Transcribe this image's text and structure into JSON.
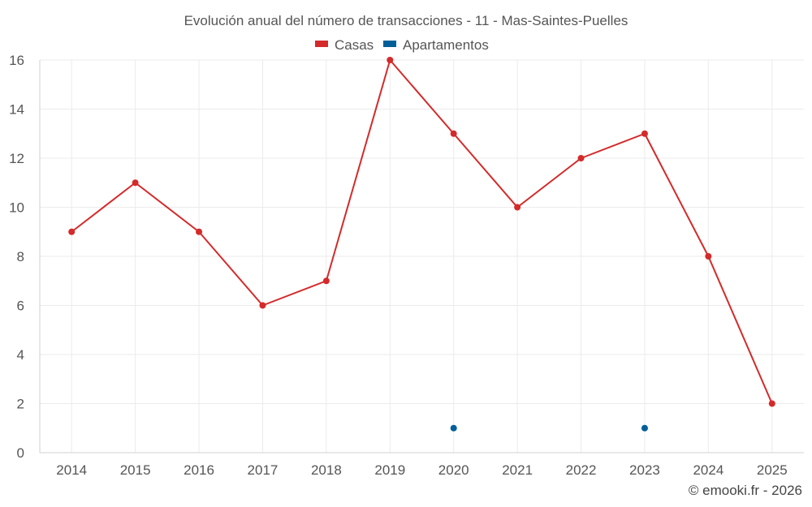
{
  "chart_data": {
    "type": "line",
    "title": "Evolución anual del número de transacciones - 11 - Mas-Saintes-Puelles",
    "xlabel": "",
    "ylabel": "",
    "categories": [
      "2014",
      "2015",
      "2016",
      "2017",
      "2018",
      "2019",
      "2020",
      "2021",
      "2022",
      "2023",
      "2024",
      "2025"
    ],
    "ylim": [
      0,
      16
    ],
    "yticks": [
      0,
      2,
      4,
      6,
      8,
      10,
      12,
      14,
      16
    ],
    "grid": true,
    "legend_position": "top-center",
    "series": [
      {
        "name": "Casas",
        "color": "#d42a2a",
        "line": true,
        "values": [
          9,
          11,
          9,
          6,
          7,
          16,
          13,
          10,
          12,
          13,
          8,
          2
        ]
      },
      {
        "name": "Apartamentos",
        "color": "#005f99",
        "line": false,
        "values": [
          null,
          null,
          null,
          null,
          null,
          null,
          1,
          null,
          null,
          1,
          null,
          null
        ]
      }
    ]
  },
  "credit": "© emooki.fr - 2026"
}
